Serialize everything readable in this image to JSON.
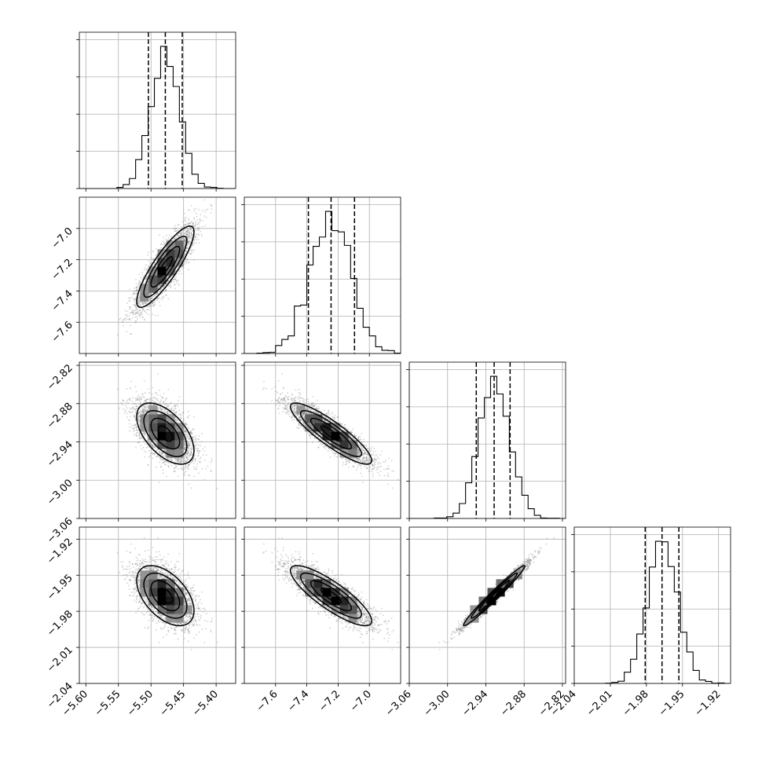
{
  "chart_data": {
    "type": "scatter",
    "kind": "corner plot (pairwise posterior samples)",
    "grid": true,
    "colors": {
      "points": "#7f7f7f",
      "lines": "#000000",
      "grid": "#b0b0b0"
    },
    "parameters": [
      {
        "range": [
          -5.61,
          -5.37
        ],
        "ticks": [
          -5.6,
          -5.55,
          -5.5,
          -5.45,
          -5.4
        ],
        "tick_labels": [
          "−5.60",
          "−5.55",
          "−5.50",
          "−5.45",
          "−5.40"
        ],
        "mean": -5.478,
        "sd": 0.022,
        "quantiles": [
          -5.504,
          -5.478,
          -5.452
        ]
      },
      {
        "range": [
          -7.8,
          -6.8
        ],
        "ticks": [
          -7.6,
          -7.4,
          -7.2,
          -7.0
        ],
        "tick_labels": [
          "−7.6",
          "−7.4",
          "−7.2",
          "−7.0"
        ],
        "mean": -7.245,
        "sd": 0.13,
        "quantiles": [
          -7.39,
          -7.245,
          -7.095
        ]
      },
      {
        "range": [
          -3.06,
          -2.815
        ],
        "ticks": [
          -3.06,
          -3.0,
          -2.94,
          -2.88,
          -2.82
        ],
        "tick_labels": [
          "−3.06",
          "−3.00",
          "−2.94",
          "−2.88",
          "−2.82"
        ],
        "mean": -2.927,
        "sd": 0.024,
        "quantiles": [
          -2.955,
          -2.927,
          -2.902
        ]
      },
      {
        "range": [
          -2.04,
          -1.91
        ],
        "ticks": [
          -2.04,
          -2.01,
          -1.98,
          -1.95,
          -1.92
        ],
        "tick_labels": [
          "−2.04",
          "−2.01",
          "−1.98",
          "−1.95",
          "−1.92"
        ],
        "mean": -1.967,
        "sd": 0.0125,
        "quantiles": [
          -1.981,
          -1.967,
          -1.953
        ]
      }
    ],
    "correlations": [
      {
        "pair": [
          0,
          1
        ],
        "r": 0.86
      },
      {
        "pair": [
          0,
          2
        ],
        "r": -0.55
      },
      {
        "pair": [
          1,
          2
        ],
        "r": -0.88
      },
      {
        "pair": [
          0,
          3
        ],
        "r": -0.5
      },
      {
        "pair": [
          1,
          3
        ],
        "r": -0.84
      },
      {
        "pair": [
          2,
          3
        ],
        "r": 0.98
      }
    ]
  }
}
